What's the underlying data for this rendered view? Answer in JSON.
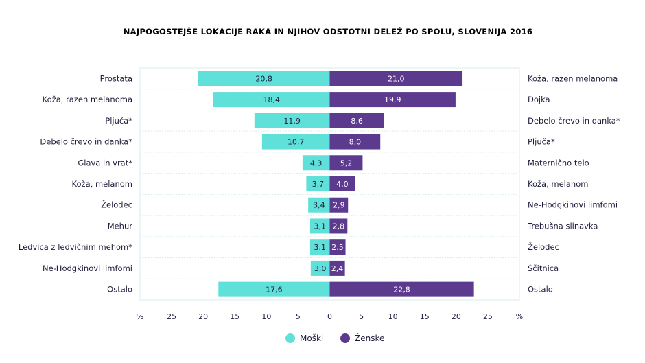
{
  "chart_data": {
    "type": "bar",
    "orientation": "horizontal-diverging",
    "title": "NAJPOGOSTEJŠE LOKACIJE RAKA IN NJIHOV ODSTOTNI DELEŽ PO SPOLU, SLOVENIJA 2016",
    "xlabel_left": "%",
    "xlabel_right": "%",
    "xlim": [
      -30,
      30
    ],
    "ticks": [
      {
        "value": -25,
        "label": "25"
      },
      {
        "value": -20,
        "label": "20"
      },
      {
        "value": -15,
        "label": "15"
      },
      {
        "value": -10,
        "label": "10"
      },
      {
        "value": -5,
        "label": "5"
      },
      {
        "value": 0,
        "label": "0"
      },
      {
        "value": 5,
        "label": "5"
      },
      {
        "value": 10,
        "label": "10"
      },
      {
        "value": 15,
        "label": "15"
      },
      {
        "value": 20,
        "label": "20"
      },
      {
        "value": 25,
        "label": "25"
      }
    ],
    "series": [
      {
        "name": "Moški",
        "color": "#5fe0d8",
        "categories": [
          "Prostata",
          "Koža, razen melanoma",
          "Pljuča*",
          "Debelo črevo in danka*",
          "Glava in vrat*",
          "Koža, melanom",
          "Želodec",
          "Mehur",
          "Ledvica z ledvičnim mehom*",
          "Ne-Hodgkinovi limfomi",
          "Ostalo"
        ],
        "values": [
          20.8,
          18.4,
          11.9,
          10.7,
          4.3,
          3.7,
          3.4,
          3.1,
          3.1,
          3.0,
          17.6
        ],
        "labels": [
          "20,8",
          "18,4",
          "11,9",
          "10,7",
          "4,3",
          "3,7",
          "3,4",
          "3,1",
          "3,1",
          "3,0",
          "17,6"
        ]
      },
      {
        "name": "Ženske",
        "color": "#5c3a8e",
        "categories": [
          "Koža, razen melanoma",
          "Dojka",
          "Debelo črevo in danka*",
          "Pljuča*",
          "Materničnо telo",
          "Koža, melanom",
          "Ne-Hodgkinovi limfomi",
          "Trebušna slinavka",
          "Želodec",
          "Ščitnica",
          "Ostalo"
        ],
        "values": [
          21.0,
          19.9,
          8.6,
          8.0,
          5.2,
          4.0,
          2.9,
          2.8,
          2.5,
          2.4,
          22.8
        ],
        "labels": [
          "21,0",
          "19,9",
          "8,6",
          "8,0",
          "5,2",
          "4,0",
          "2,9",
          "2,8",
          "2,5",
          "2,4",
          "22,8"
        ]
      }
    ],
    "legend_position": "bottom-center",
    "grid": true,
    "grid_color": "#d6efee",
    "text_color": "#1d1d3b"
  }
}
